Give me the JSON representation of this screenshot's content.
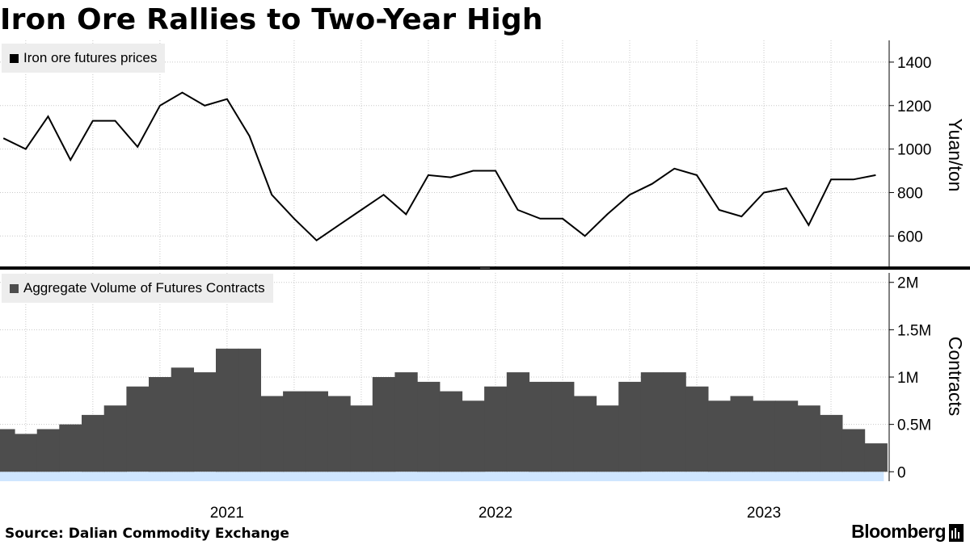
{
  "title": "Iron Ore Rallies to Two-Year High",
  "source": "Source: Dalian Commodity Exchange",
  "brand": "Bloomberg",
  "colors": {
    "price_line": "#000000",
    "volume_bars": "#4d4d4d",
    "zero_band": "#cfe6ff",
    "grid": "#c8c8c8",
    "legend_bg": "#ededed"
  },
  "chart_data": [
    {
      "type": "line",
      "legend": "Iron ore futures prices",
      "ylabel": "Yuan/ton",
      "ylim": [
        460,
        1500
      ],
      "yticks": [
        600,
        800,
        1000,
        1200,
        1400
      ],
      "grid": true,
      "legend_position": "top-left",
      "x_tick_labels": [
        "2021",
        "2022",
        "2023"
      ],
      "x": [
        "2020-09",
        "2020-10",
        "2020-11",
        "2020-12",
        "2021-01",
        "2021-02",
        "2021-03",
        "2021-04",
        "2021-05",
        "2021-06",
        "2021-07",
        "2021-08",
        "2021-09",
        "2021-10",
        "2021-11",
        "2021-12",
        "2022-01",
        "2022-02",
        "2022-03",
        "2022-04",
        "2022-05",
        "2022-06",
        "2022-07",
        "2022-08",
        "2022-09",
        "2022-10",
        "2022-11",
        "2022-12",
        "2023-01",
        "2023-02",
        "2023-03",
        "2023-04",
        "2023-05",
        "2023-06",
        "2023-07",
        "2023-08",
        "2023-09",
        "2023-10",
        "2023-11",
        "2023-12"
      ],
      "values": [
        1050,
        1000,
        1150,
        950,
        1130,
        1130,
        1010,
        1200,
        1260,
        1200,
        1230,
        1060,
        790,
        680,
        580,
        650,
        720,
        790,
        700,
        880,
        870,
        900,
        900,
        720,
        680,
        680,
        600,
        700,
        790,
        840,
        910,
        880,
        720,
        690,
        800,
        820,
        650,
        860,
        860,
        880
      ]
    },
    {
      "type": "bar",
      "legend": "Aggregate Volume of Futures Contracts",
      "ylabel": "Contracts",
      "ylim": [
        -0.1,
        2.1
      ],
      "yticks": [
        "0",
        "0.5M",
        "1M",
        "1.5M",
        "2M"
      ],
      "ytick_values": [
        0,
        0.5,
        1,
        1.5,
        2
      ],
      "unit": "M",
      "grid": true,
      "legend_position": "top-left",
      "x_tick_labels": [
        "2021",
        "2022",
        "2023"
      ],
      "x": [
        "2020-09",
        "2020-10",
        "2020-11",
        "2020-12",
        "2021-01",
        "2021-02",
        "2021-03",
        "2021-04",
        "2021-05",
        "2021-06",
        "2021-07",
        "2021-08",
        "2021-09",
        "2021-10",
        "2021-11",
        "2021-12",
        "2022-01",
        "2022-02",
        "2022-03",
        "2022-04",
        "2022-05",
        "2022-06",
        "2022-07",
        "2022-08",
        "2022-09",
        "2022-10",
        "2022-11",
        "2022-12",
        "2023-01",
        "2023-02",
        "2023-03",
        "2023-04",
        "2023-05",
        "2023-06",
        "2023-07",
        "2023-08",
        "2023-09",
        "2023-10",
        "2023-11",
        "2023-12"
      ],
      "values": [
        0.45,
        0.4,
        0.45,
        0.5,
        0.6,
        0.7,
        0.9,
        1.0,
        1.1,
        1.05,
        1.3,
        1.3,
        0.8,
        0.85,
        0.85,
        0.8,
        0.7,
        1.0,
        1.05,
        0.95,
        0.85,
        0.75,
        0.9,
        1.05,
        0.95,
        0.95,
        0.8,
        0.7,
        0.95,
        1.05,
        1.05,
        0.9,
        0.75,
        0.8,
        0.75,
        0.75,
        0.7,
        0.6,
        0.45,
        0.3
      ]
    }
  ]
}
